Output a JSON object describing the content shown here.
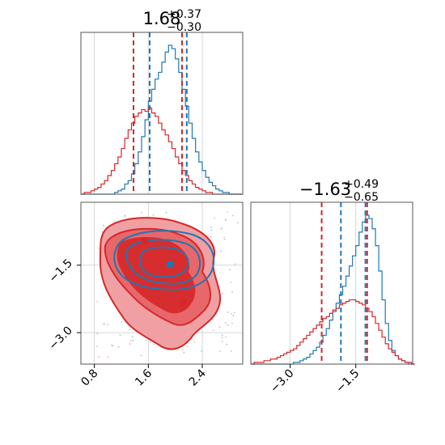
{
  "chart_data": {
    "type": "corner",
    "colors": {
      "blue": "#1f77b4",
      "red": "#d62728",
      "red_fill": "#e8676b",
      "red_fill_light": "#f0a0a3"
    },
    "panels": [
      {
        "id": "param1-histogram",
        "type": "histogram",
        "title": {
          "main": "1.68",
          "sup": "+0.37",
          "sub": "−0.30"
        },
        "xlim": [
          0.6,
          3.0
        ],
        "grid": true,
        "series": [
          {
            "name": "",
            "color": "#1f77b4",
            "bin_start": 0.6,
            "bin_width": 0.05,
            "counts": [
              0,
              0,
              0,
              0,
              0,
              0,
              0,
              0,
              0,
              0,
              1,
              2,
              3,
              6,
              8,
              12,
              18,
              25,
              34,
              44,
              55,
              62,
              68,
              72,
              78,
              84,
              88,
              86,
              80,
              72,
              62,
              52,
              42,
              33,
              25,
              19,
              14,
              10,
              7,
              5,
              3,
              2,
              1,
              1,
              0,
              0,
              0,
              0
            ]
          },
          {
            "name": "",
            "color": "#d62728",
            "bin_start": 0.6,
            "bin_width": 0.05,
            "counts": [
              0,
              1,
              1,
              2,
              3,
              4,
              6,
              8,
              11,
              14,
              18,
              22,
              27,
              33,
              38,
              42,
              46,
              48,
              50,
              49,
              51,
              48,
              46,
              42,
              38,
              35,
              31,
              27,
              22,
              18,
              14,
              11,
              8,
              6,
              4,
              3,
              2,
              1,
              1,
              0,
              0,
              0,
              0,
              0,
              0,
              0,
              0,
              0
            ]
          }
        ],
        "vlines": [
          {
            "x": 1.38,
            "color": "#d62728"
          },
          {
            "x": 1.62,
            "color": "#1f77b4"
          },
          {
            "x": 2.1,
            "color": "#d62728"
          },
          {
            "x": 2.17,
            "color": "#1f77b4"
          }
        ]
      },
      {
        "id": "param2-histogram",
        "type": "histogram",
        "title": {
          "main": "−1.63",
          "sup": "+0.49",
          "sub": "−0.65"
        },
        "xlim": [
          -3.9,
          -0.2
        ],
        "xticks": [
          -3.0,
          -1.5
        ],
        "xtick_labels": [
          "−3.0",
          "−1.5"
        ],
        "grid": true,
        "series": [
          {
            "name": "",
            "color": "#1f77b4",
            "bin_start": -3.9,
            "bin_width": 0.075,
            "counts": [
              0,
              0,
              0,
              0,
              0,
              0,
              0,
              0,
              0,
              0,
              0,
              0,
              0,
              1,
              1,
              2,
              3,
              4,
              6,
              8,
              10,
              13,
              17,
              21,
              26,
              31,
              36,
              41,
              46,
              52,
              58,
              64,
              70,
              78,
              84,
              88,
              86,
              80,
              70,
              55,
              38,
              24,
              14,
              8,
              5,
              3,
              2,
              1,
              0,
              0
            ]
          },
          {
            "name": "",
            "color": "#d62728",
            "bin_start": -3.9,
            "bin_width": 0.075,
            "counts": [
              0,
              1,
              1,
              1,
              2,
              2,
              3,
              3,
              4,
              5,
              6,
              7,
              8,
              9,
              11,
              13,
              15,
              17,
              19,
              21,
              23,
              25,
              27,
              28,
              30,
              32,
              33,
              35,
              36,
              37,
              38,
              38,
              37,
              36,
              35,
              33,
              31,
              28,
              24,
              20,
              16,
              12,
              9,
              7,
              5,
              3,
              2,
              1,
              1,
              0
            ]
          }
        ],
        "vlines": [
          {
            "x": -2.28,
            "color": "#d62728"
          },
          {
            "x": -1.84,
            "color": "#1f77b4"
          },
          {
            "x": -1.28,
            "color": "#1f77b4"
          },
          {
            "x": -1.24,
            "color": "#d62728"
          }
        ]
      },
      {
        "id": "joint-contour",
        "type": "contour",
        "xlim": [
          0.6,
          3.0
        ],
        "ylim": [
          -3.7,
          -0.1
        ],
        "xticks": [
          0.8,
          1.6,
          2.4
        ],
        "xtick_labels": [
          "0.8",
          "1.6",
          "2.4"
        ],
        "yticks": [
          -3.0,
          -1.5
        ],
        "ytick_labels": [
          "−3.0",
          "−1.5"
        ],
        "grid": true,
        "markers": [
          {
            "x": 1.55,
            "y": -0.95,
            "color": "#d62728"
          },
          {
            "x": 1.92,
            "y": -1.48,
            "color": "#1f77b4"
          },
          {
            "x": 2.12,
            "y": -2.33,
            "color": "#d62728"
          }
        ]
      }
    ]
  }
}
